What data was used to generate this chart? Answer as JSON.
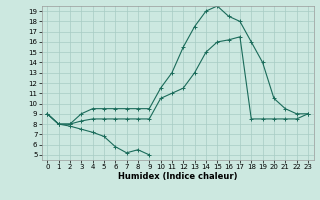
{
  "title": "",
  "xlabel": "Humidex (Indice chaleur)",
  "bg_color": "#cce8e0",
  "line_color": "#1a6b5a",
  "grid_color": "#a8ccc4",
  "xlim": [
    -0.5,
    23.5
  ],
  "ylim": [
    4.5,
    19.5
  ],
  "xticks": [
    0,
    1,
    2,
    3,
    4,
    5,
    6,
    7,
    8,
    9,
    10,
    11,
    12,
    13,
    14,
    15,
    16,
    17,
    18,
    19,
    20,
    21,
    22,
    23
  ],
  "yticks": [
    5,
    6,
    7,
    8,
    9,
    10,
    11,
    12,
    13,
    14,
    15,
    16,
    17,
    18,
    19
  ],
  "series1_x": [
    0,
    1,
    2,
    3,
    4,
    5,
    6,
    7,
    8,
    9
  ],
  "series1_y": [
    9.0,
    8.0,
    7.8,
    7.5,
    7.2,
    6.8,
    5.8,
    5.2,
    5.5,
    5.0
  ],
  "series2_x": [
    0,
    1,
    2,
    3,
    4,
    5,
    6,
    7,
    8,
    9,
    10,
    11,
    12,
    13,
    14,
    15,
    16,
    17,
    18,
    19,
    20,
    21,
    22,
    23
  ],
  "series2_y": [
    9.0,
    8.0,
    8.0,
    8.3,
    8.5,
    8.5,
    8.5,
    8.5,
    8.5,
    8.5,
    10.5,
    11.0,
    11.5,
    13.0,
    15.0,
    16.0,
    16.2,
    16.5,
    8.5,
    8.5,
    8.5,
    8.5,
    8.5,
    9.0
  ],
  "series3_x": [
    0,
    1,
    2,
    3,
    4,
    5,
    6,
    7,
    8,
    9,
    10,
    11,
    12,
    13,
    14,
    15,
    16,
    17,
    18,
    19,
    20,
    21,
    22,
    23
  ],
  "series3_y": [
    9.0,
    8.0,
    8.0,
    9.0,
    9.5,
    9.5,
    9.5,
    9.5,
    9.5,
    9.5,
    11.5,
    13.0,
    15.5,
    17.5,
    19.0,
    19.5,
    18.5,
    18.0,
    16.0,
    14.0,
    10.5,
    9.5,
    9.0,
    9.0
  ],
  "markersize": 2.0,
  "linewidth": 0.8,
  "xlabel_fontsize": 6,
  "tick_fontsize": 5
}
